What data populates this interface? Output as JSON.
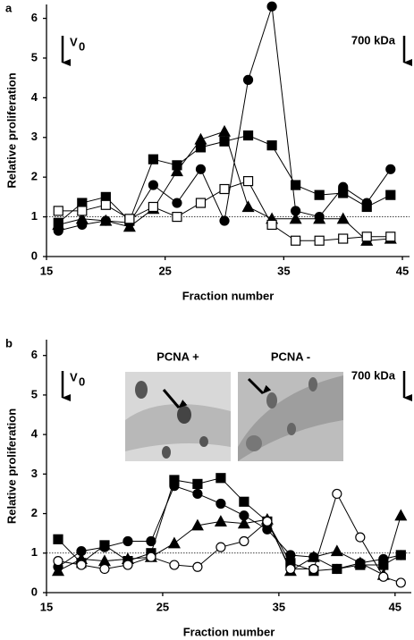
{
  "chart_data": [
    {
      "type": "line",
      "panel": "a",
      "ylabel": "Relative proliferation",
      "xlabel": "Fraction  number",
      "x": [
        16,
        18,
        20,
        22,
        24,
        26,
        28,
        30,
        32,
        34,
        36,
        38,
        40,
        42,
        44
      ],
      "xlim": [
        15,
        45.6
      ],
      "xticks": [
        15,
        25,
        35,
        45
      ],
      "ylim": [
        0,
        6.35
      ],
      "yticks": [
        0,
        1,
        2,
        3,
        4,
        5,
        6
      ],
      "reference_line": 1,
      "left_marker": "V",
      "left_marker_sub": "0",
      "right_marker": "700 kDa",
      "series": [
        {
          "color": "#000000",
          "marker": "circle",
          "filled": true,
          "values": [
            0.65,
            0.8,
            0.9,
            0.85,
            1.8,
            1.35,
            2.2,
            0.9,
            4.45,
            6.3,
            1.15,
            1.0,
            1.75,
            1.35,
            2.2
          ]
        },
        {
          "color": "#000000",
          "marker": "square",
          "filled": true,
          "values": [
            0.85,
            1.35,
            1.5,
            0.9,
            2.45,
            2.3,
            2.75,
            2.9,
            3.05,
            2.8,
            1.8,
            1.55,
            1.6,
            1.25,
            1.55
          ]
        },
        {
          "color": "#000000",
          "marker": "triangle",
          "filled": true,
          "values": [
            0.8,
            0.95,
            0.9,
            0.75,
            1.2,
            2.15,
            2.95,
            3.15,
            1.25,
            0.95,
            0.95,
            0.95,
            0.95,
            0.4,
            0.45
          ]
        },
        {
          "color": "#000000",
          "marker": "square",
          "filled": false,
          "values": [
            1.15,
            1.15,
            1.3,
            0.95,
            1.25,
            1.0,
            1.35,
            1.7,
            1.9,
            0.8,
            0.4,
            0.4,
            0.45,
            0.5,
            0.5
          ]
        }
      ]
    },
    {
      "type": "line",
      "panel": "b",
      "ylabel": "Relative proliferation",
      "xlabel": "Fraction number",
      "x": [
        16,
        18,
        20,
        22,
        24,
        26,
        28,
        30,
        32,
        34,
        36,
        38,
        40,
        42,
        44,
        45.5
      ],
      "xlim": [
        15,
        46.4
      ],
      "xticks": [
        15,
        25,
        35,
        45
      ],
      "ylim": [
        0,
        6.4
      ],
      "yticks": [
        0,
        1,
        2,
        3,
        4,
        5,
        6
      ],
      "reference_line": 1,
      "left_marker": "V",
      "left_marker_sub": "0",
      "right_marker": "700 kDa",
      "inset_labels": [
        "PCNA +",
        "PCNA -"
      ],
      "series": [
        {
          "color": "#000000",
          "marker": "square",
          "filled": true,
          "values": [
            1.35,
            0.75,
            1.2,
            0.8,
            1.0,
            2.85,
            2.75,
            2.9,
            2.3,
            1.8,
            0.75,
            0.55,
            0.6,
            0.7,
            0.7,
            0.95
          ]
        },
        {
          "color": "#000000",
          "marker": "circle",
          "filled": true,
          "values": [
            0.65,
            1.05,
            1.15,
            1.3,
            1.3,
            2.7,
            2.5,
            2.25,
            1.95,
            1.6,
            0.95,
            0.9,
            0.6,
            0.75,
            0.85,
            0.95
          ]
        },
        {
          "color": "#000000",
          "marker": "triangle",
          "filled": true,
          "values": [
            0.55,
            0.85,
            0.8,
            0.85,
            0.9,
            1.25,
            1.7,
            1.8,
            1.75,
            1.85,
            0.55,
            0.9,
            1.05,
            0.75,
            0.45,
            1.95
          ]
        },
        {
          "color": "#000000",
          "marker": "circle",
          "filled": false,
          "values": [
            0.8,
            0.7,
            0.6,
            0.7,
            0.9,
            0.7,
            0.65,
            1.15,
            1.3,
            1.8,
            0.6,
            0.6,
            2.5,
            1.4,
            0.4,
            0.25
          ]
        }
      ]
    }
  ]
}
